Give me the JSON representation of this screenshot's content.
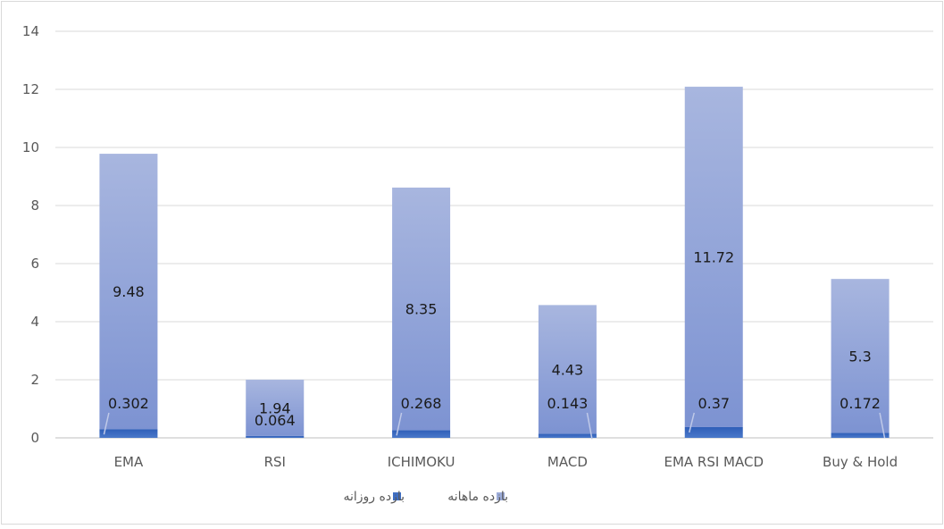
{
  "chart_data": {
    "type": "bar",
    "stacked": true,
    "categories": [
      "EMA",
      "RSI",
      "ICHIMOKU",
      "MACD",
      "EMA RSI MACD",
      "Buy & Hold"
    ],
    "series": [
      {
        "name": "بازده روزانه",
        "values": [
          0.302,
          0.064,
          0.268,
          0.143,
          0.37,
          0.172
        ],
        "color": "#3f6fc4"
      },
      {
        "name": "بازده ماهانه",
        "values": [
          9.48,
          1.94,
          8.35,
          4.43,
          11.72,
          5.3
        ],
        "color": "#9cacd9"
      }
    ],
    "ylim": [
      0,
      14
    ],
    "yticks": [
      "0",
      "2",
      "4",
      "6",
      "8",
      "10",
      "12",
      "14"
    ],
    "grid": true,
    "legend": "bottom"
  }
}
